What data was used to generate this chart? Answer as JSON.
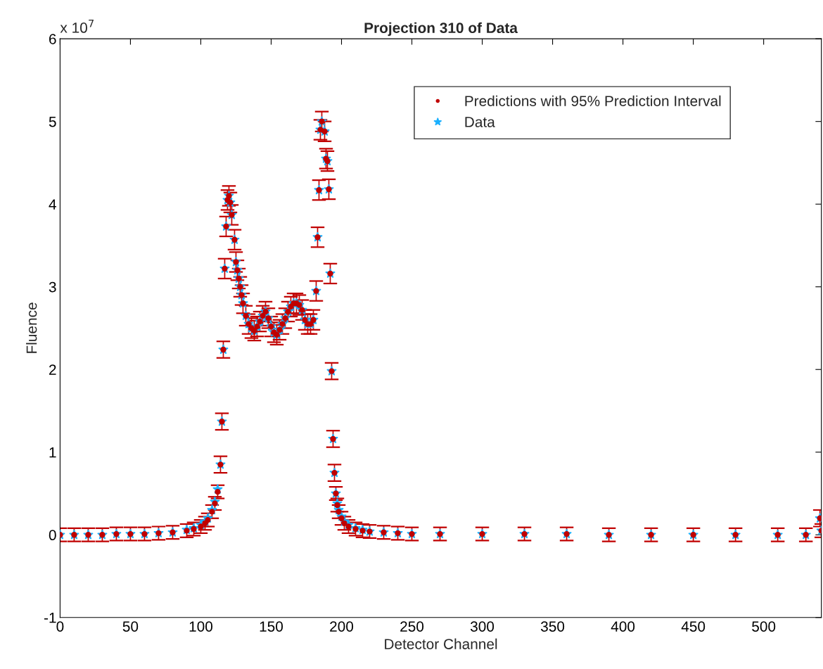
{
  "chart_data": {
    "type": "scatter",
    "title": "Projection 310 of Data",
    "xlabel": "Detector Channel",
    "ylabel": "Fluence",
    "annotations": [
      "x 10$^{7}$"
    ],
    "xlim": [
      0,
      541
    ],
    "xticks": [
      0,
      50,
      100,
      150,
      200,
      250,
      300,
      350,
      400,
      450,
      500
    ],
    "ylim": [
      -1,
      6
    ],
    "yticks": [
      -1,
      0,
      1,
      2,
      3,
      4,
      5,
      6
    ],
    "grid": false,
    "legend": "top right",
    "x": [
      0,
      10,
      20,
      30,
      40,
      50,
      60,
      70,
      80,
      90,
      95,
      100,
      103,
      105,
      108,
      110,
      112,
      114,
      115,
      116,
      117,
      118,
      119,
      120,
      121,
      122,
      124,
      125,
      126,
      127,
      128,
      129,
      130,
      132,
      134,
      136,
      138,
      140,
      142,
      144,
      146,
      148,
      150,
      152,
      154,
      156,
      158,
      160,
      162,
      164,
      166,
      168,
      170,
      172,
      174,
      176,
      178,
      180,
      182,
      183,
      184,
      185,
      186,
      188,
      189,
      190,
      191,
      192,
      193,
      194,
      195,
      196,
      197,
      198,
      200,
      202,
      205,
      210,
      215,
      220,
      230,
      240,
      250,
      270,
      300,
      330,
      360,
      390,
      420,
      450,
      480,
      510,
      530,
      540,
      541
    ],
    "series": [
      {
        "name": "Predictions with 95% Prediction Interval",
        "color": "#c00000",
        "marker": "circle",
        "values": [
          0.0,
          0.0,
          0.0,
          0.0,
          0.01,
          0.01,
          0.01,
          0.02,
          0.03,
          0.05,
          0.07,
          0.1,
          0.14,
          0.18,
          0.28,
          0.38,
          0.52,
          0.85,
          1.37,
          2.24,
          3.22,
          3.73,
          4.05,
          4.1,
          4.02,
          3.87,
          3.57,
          3.3,
          3.2,
          3.1,
          3.0,
          2.9,
          2.8,
          2.65,
          2.55,
          2.5,
          2.47,
          2.52,
          2.58,
          2.65,
          2.7,
          2.62,
          2.52,
          2.45,
          2.42,
          2.48,
          2.55,
          2.62,
          2.7,
          2.76,
          2.8,
          2.8,
          2.78,
          2.72,
          2.6,
          2.55,
          2.55,
          2.6,
          2.95,
          3.6,
          4.17,
          4.9,
          5.0,
          4.88,
          4.55,
          4.52,
          4.18,
          3.16,
          1.98,
          1.16,
          0.75,
          0.5,
          0.36,
          0.28,
          0.2,
          0.14,
          0.1,
          0.07,
          0.05,
          0.04,
          0.03,
          0.02,
          0.01,
          0.01,
          0.01,
          0.01,
          0.01,
          0.0,
          0.0,
          0.0,
          0.0,
          0.0,
          0.0,
          0.2,
          0.05
        ],
        "errors": [
          0.08,
          0.08,
          0.08,
          0.08,
          0.08,
          0.08,
          0.08,
          0.08,
          0.08,
          0.08,
          0.08,
          0.08,
          0.08,
          0.08,
          0.08,
          0.08,
          0.08,
          0.1,
          0.1,
          0.1,
          0.12,
          0.12,
          0.12,
          0.12,
          0.12,
          0.12,
          0.12,
          0.12,
          0.12,
          0.12,
          0.12,
          0.12,
          0.12,
          0.12,
          0.12,
          0.12,
          0.12,
          0.12,
          0.12,
          0.12,
          0.12,
          0.12,
          0.12,
          0.12,
          0.12,
          0.12,
          0.12,
          0.12,
          0.12,
          0.12,
          0.12,
          0.12,
          0.12,
          0.12,
          0.12,
          0.12,
          0.12,
          0.12,
          0.12,
          0.12,
          0.12,
          0.12,
          0.12,
          0.12,
          0.12,
          0.12,
          0.12,
          0.12,
          0.1,
          0.1,
          0.1,
          0.08,
          0.08,
          0.08,
          0.08,
          0.08,
          0.08,
          0.08,
          0.08,
          0.08,
          0.08,
          0.08,
          0.08,
          0.08,
          0.08,
          0.08,
          0.08,
          0.08,
          0.08,
          0.08,
          0.08,
          0.08,
          0.08,
          0.1,
          0.08
        ]
      },
      {
        "name": "Data",
        "color": "#1ab0ff",
        "marker": "star",
        "values": [
          0.0,
          0.0,
          0.0,
          0.0,
          0.01,
          0.01,
          0.01,
          0.02,
          0.03,
          0.06,
          0.08,
          0.12,
          0.16,
          0.2,
          0.3,
          0.4,
          0.55,
          0.85,
          1.37,
          2.24,
          3.22,
          3.73,
          4.05,
          4.1,
          4.02,
          3.87,
          3.57,
          3.3,
          3.2,
          3.1,
          3.0,
          2.9,
          2.8,
          2.65,
          2.55,
          2.5,
          2.47,
          2.52,
          2.58,
          2.65,
          2.7,
          2.62,
          2.52,
          2.45,
          2.42,
          2.48,
          2.55,
          2.62,
          2.7,
          2.76,
          2.8,
          2.8,
          2.78,
          2.72,
          2.6,
          2.55,
          2.55,
          2.6,
          2.95,
          3.6,
          4.17,
          4.9,
          5.0,
          4.88,
          4.55,
          4.52,
          4.18,
          3.16,
          1.98,
          1.16,
          0.75,
          0.5,
          0.38,
          0.3,
          0.22,
          0.16,
          0.12,
          0.08,
          0.06,
          0.04,
          0.03,
          0.02,
          0.01,
          0.01,
          0.01,
          0.01,
          0.01,
          0.0,
          0.0,
          0.0,
          0.0,
          0.0,
          0.0,
          0.2,
          0.05
        ]
      }
    ]
  }
}
